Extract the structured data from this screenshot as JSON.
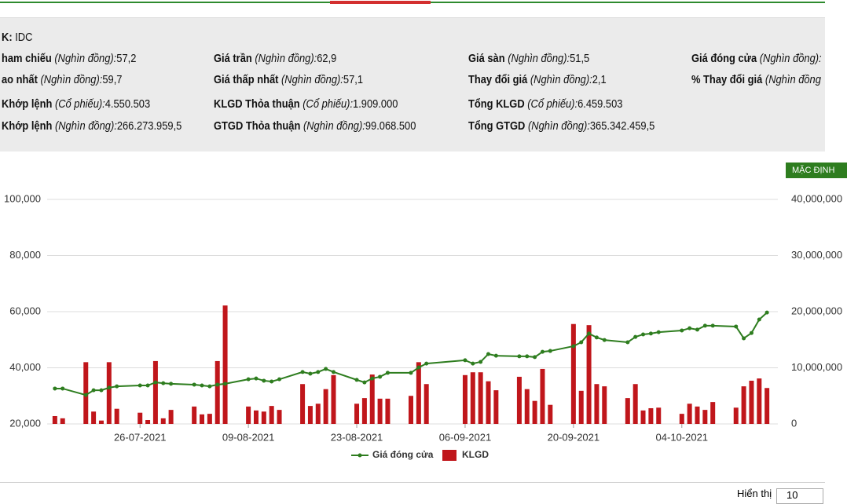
{
  "info": {
    "rows": [
      [
        {
          "label": "K:",
          "value": "IDC"
        }
      ],
      [
        {
          "label": "ham chiếu",
          "unit": "(Nghìn đồng):",
          "value": "57,2"
        },
        {
          "label": "Giá trần",
          "unit": "(Nghìn đồng):",
          "value": "62,9"
        },
        {
          "label": "Giá sàn",
          "unit": "(Nghìn đồng):",
          "value": "51,5"
        },
        {
          "label": "Giá đóng cửa",
          "unit": "(Nghìn đồng):"
        }
      ],
      [
        {
          "label": "ao nhất",
          "unit": "(Nghìn đồng):",
          "value": "59,7"
        },
        {
          "label": "Giá thấp nhất",
          "unit": "(Nghìn đồng):",
          "value": "57,1"
        },
        {
          "label": "Thay đổi giá",
          "unit": "(Nghìn đồng):",
          "value": "2,1"
        },
        {
          "label": "% Thay đổi giá",
          "unit": "(Nghìn đồng"
        }
      ],
      [
        {
          "label": "Khớp lệnh",
          "unit": "(Cổ phiếu):",
          "value": "4.550.503"
        },
        {
          "label": "KLGD Thỏa thuận",
          "unit": "(Cổ phiếu):",
          "value": "1.909.000"
        },
        {
          "label": "Tổng KLGD",
          "unit": "(Cổ phiếu):",
          "value": "6.459.503"
        }
      ],
      [
        {
          "label": "Khớp lệnh",
          "unit": "(Nghìn đồng):",
          "value": "266.273.959,5"
        },
        {
          "label": "GTGD Thỏa thuận",
          "unit": "(Nghìn đồng):",
          "value": "99.068.500"
        },
        {
          "label": "Tổng GTGD",
          "unit": "(Nghìn đồng):",
          "value": "365.342.459,5"
        }
      ]
    ]
  },
  "button": "MẶC ĐỊNH",
  "footer": {
    "label": "Hiển thị",
    "value": "10"
  },
  "chart_data": {
    "type": "line-bar",
    "x": [
      "15-07-2021",
      "16-07-2021",
      "19-07-2021",
      "20-07-2021",
      "21-07-2021",
      "22-07-2021",
      "23-07-2021",
      "26-07-2021",
      "27-07-2021",
      "28-07-2021",
      "29-07-2021",
      "30-07-2021",
      "02-08-2021",
      "03-08-2021",
      "04-08-2021",
      "05-08-2021",
      "06-08-2021",
      "09-08-2021",
      "10-08-2021",
      "11-08-2021",
      "12-08-2021",
      "13-08-2021",
      "16-08-2021",
      "17-08-2021",
      "18-08-2021",
      "19-08-2021",
      "20-08-2021",
      "23-08-2021",
      "24-08-2021",
      "25-08-2021",
      "26-08-2021",
      "27-08-2021",
      "30-08-2021",
      "31-08-2021",
      "01-09-2021",
      "06-09-2021",
      "07-09-2021",
      "08-09-2021",
      "09-09-2021",
      "10-09-2021",
      "13-09-2021",
      "14-09-2021",
      "15-09-2021",
      "16-09-2021",
      "17-09-2021",
      "20-09-2021",
      "21-09-2021",
      "22-09-2021",
      "23-09-2021",
      "24-09-2021",
      "27-09-2021",
      "28-09-2021",
      "29-09-2021",
      "30-09-2021",
      "01-10-2021",
      "04-10-2021",
      "05-10-2021",
      "06-10-2021",
      "07-10-2021",
      "08-10-2021",
      "11-10-2021",
      "12-10-2021",
      "13-10-2021",
      "14-10-2021",
      "15-10-2021"
    ],
    "series": [
      {
        "name": "KLGD",
        "color": "#c0161b",
        "axis": "y2",
        "kind": "bar",
        "values": [
          1400000,
          1000000,
          11000000,
          2200000,
          600000,
          11000000,
          2700000,
          2000000,
          700000,
          11200000,
          1000000,
          2500000,
          3100000,
          1700000,
          1800000,
          11200000,
          21100000,
          3100000,
          2400000,
          2200000,
          3200000,
          2500000,
          7100000,
          3200000,
          3600000,
          6200000,
          8700000,
          3600000,
          4600000,
          8800000,
          4500000,
          4500000,
          5000000,
          11000000,
          7100000,
          8700000,
          9200000,
          9200000,
          7600000,
          6000000,
          8400000,
          6200000,
          4100000,
          9800000,
          3400000,
          17800000,
          5900000,
          17600000,
          7100000,
          6700000,
          4600000,
          7100000,
          2400000,
          2800000,
          2900000,
          1800000,
          3600000,
          3100000,
          2500000,
          3900000,
          2900000,
          6700000,
          7700000,
          8100000,
          6400000
        ]
      },
      {
        "name": "Giá đóng cửa",
        "color": "#2e7d1f",
        "kind": "line",
        "values": [
          32600,
          32600,
          30300,
          32000,
          32000,
          32900,
          33400,
          33700,
          33700,
          34800,
          34500,
          34300,
          34000,
          33700,
          33400,
          34000,
          34300,
          35900,
          36200,
          35400,
          35100,
          35900,
          38500,
          37900,
          38500,
          39600,
          38500,
          35700,
          34800,
          36200,
          36800,
          38200,
          38200,
          40100,
          41500,
          42700,
          41500,
          42100,
          44900,
          44300,
          44100,
          44100,
          43800,
          45700,
          46000,
          47700,
          49100,
          52200,
          50800,
          49900,
          49100,
          51000,
          51900,
          52200,
          52700,
          53300,
          54100,
          53600,
          55000,
          55000,
          54700,
          50500,
          52400,
          57200,
          59700
        ]
      }
    ],
    "xlim": [
      "14-07-2021",
      "16-10-2021"
    ],
    "xticks": [
      "26-07-2021",
      "09-08-2021",
      "23-08-2021",
      "06-09-2021",
      "20-09-2021",
      "04-10-2021"
    ],
    "ylim": [
      20000,
      100000
    ],
    "yticks": [
      {
        "value": 20000,
        "label": "20,000"
      },
      {
        "value": 40000,
        "label": "40,000"
      },
      {
        "value": 60000,
        "label": "60,000"
      },
      {
        "value": 80000,
        "label": "80,000"
      },
      {
        "value": 100000,
        "label": "100,000"
      }
    ],
    "y2lim": [
      0,
      40000000
    ],
    "y2ticks": [
      0,
      {
        "value": 10000000,
        "label": "10,000,000"
      },
      {
        "value": 20000000,
        "label": "20,000,000"
      },
      {
        "value": 30000000,
        "label": "30,000,000"
      },
      {
        "value": 40000000,
        "label": "40,000,000"
      }
    ],
    "grid": true
  }
}
